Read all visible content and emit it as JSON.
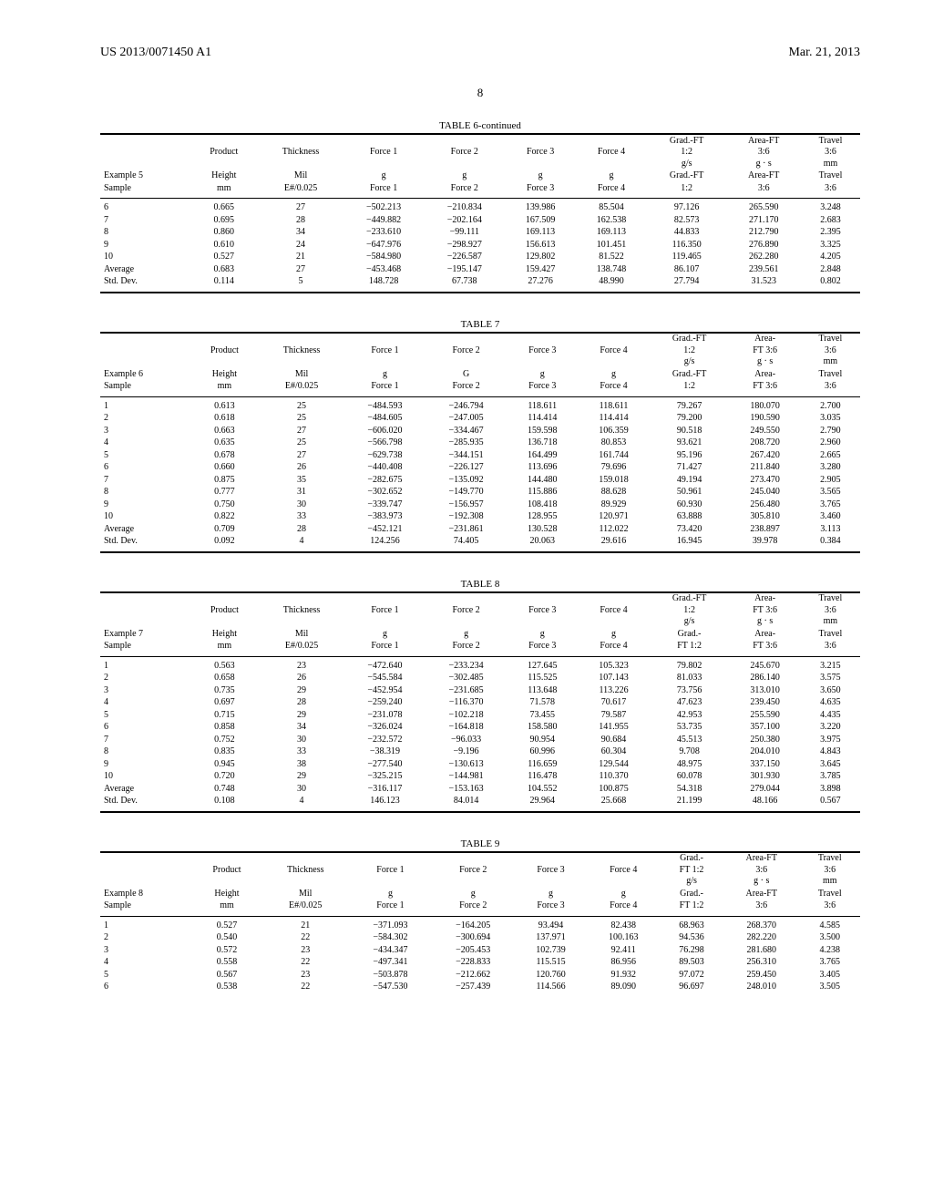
{
  "header": {
    "left": "US 2013/0071450 A1",
    "right": "Mar. 21, 2013"
  },
  "page_number": "8",
  "columns_3line": [
    [
      "",
      "Product",
      "Thickness",
      "Force 1",
      "Force 2",
      "Force 3",
      "Force 4",
      "Grad.-FT\n1:2\ng/s",
      "Area-FT\n3:6\ng · s",
      "Travel\n3:6\nmm"
    ],
    [
      "__EX__",
      "Height",
      "Mil",
      "g",
      "g",
      "g",
      "g",
      "Grad.-FT",
      "Area-FT",
      "Travel"
    ],
    [
      "Sample",
      "mm",
      "E#/0.025",
      "Force 1",
      "Force 2",
      "Force 3",
      "Force 4",
      "1:2",
      "3:6",
      "3:6"
    ]
  ],
  "columns_3line_b": [
    [
      "",
      "Product",
      "Thickness",
      "Force 1",
      "Force 2",
      "Force 3",
      "Force 4",
      "Grad.-FT\n1:2\ng/s",
      "Area-\nFT 3:6\ng · s",
      "Travel\n3:6\nmm"
    ],
    [
      "__EX__",
      "Height",
      "Mil",
      "g",
      "G",
      "g",
      "g",
      "Grad.-FT",
      "Area-",
      "Travel"
    ],
    [
      "Sample",
      "mm",
      "E#/0.025",
      "Force 1",
      "Force 2",
      "Force 3",
      "Force 4",
      "1:2",
      "FT 3:6",
      "3:6"
    ]
  ],
  "columns_3line_c": [
    [
      "",
      "Product",
      "Thickness",
      "Force 1",
      "Force 2",
      "Force 3",
      "Force 4",
      "Grad.-FT\n1:2\ng/s",
      "Area-\nFT 3:6\ng · s",
      "Travel\n3:6\nmm"
    ],
    [
      "__EX__",
      "Height",
      "Mil",
      "g",
      "g",
      "g",
      "g",
      "Grad.-",
      "Area-",
      "Travel"
    ],
    [
      "Sample",
      "mm",
      "E#/0.025",
      "Force 1",
      "Force 2",
      "Force 3",
      "Force 4",
      "FT 1:2",
      "FT 3:6",
      "3:6"
    ]
  ],
  "columns_3line_d": [
    [
      "",
      "Product",
      "Thickness",
      "Force 1",
      "Force 2",
      "Force 3",
      "Force 4",
      "Grad.-\nFT 1:2\ng/s",
      "Area-FT\n3:6\ng · s",
      "Travel\n3:6\nmm"
    ],
    [
      "__EX__",
      "Height",
      "Mil",
      "g",
      "g",
      "g",
      "g",
      "Grad.-",
      "Area-FT",
      "Travel"
    ],
    [
      "Sample",
      "mm",
      "E#/0.025",
      "Force 1",
      "Force 2",
      "Force 3",
      "Force 4",
      "FT 1:2",
      "3:6",
      "3:6"
    ]
  ],
  "tables": [
    {
      "caption": "TABLE 6-continued",
      "example": "Example 5",
      "header_style": "columns_3line",
      "rows": [
        [
          "6",
          "0.665",
          "27",
          "−502.213",
          "−210.834",
          "139.986",
          "85.504",
          "97.126",
          "265.590",
          "3.248"
        ],
        [
          "7",
          "0.695",
          "28",
          "−449.882",
          "−202.164",
          "167.509",
          "162.538",
          "82.573",
          "271.170",
          "2.683"
        ],
        [
          "8",
          "0.860",
          "34",
          "−233.610",
          "−99.111",
          "169.113",
          "169.113",
          "44.833",
          "212.790",
          "2.395"
        ],
        [
          "9",
          "0.610",
          "24",
          "−647.976",
          "−298.927",
          "156.613",
          "101.451",
          "116.350",
          "276.890",
          "3.325"
        ],
        [
          "10",
          "0.527",
          "21",
          "−584.980",
          "−226.587",
          "129.802",
          "81.522",
          "119.465",
          "262.280",
          "4.205"
        ],
        [
          "Average",
          "0.683",
          "27",
          "−453.468",
          "−195.147",
          "159.427",
          "138.748",
          "86.107",
          "239.561",
          "2.848"
        ],
        [
          "Std. Dev.",
          "0.114",
          "5",
          "148.728",
          "67.738",
          "27.276",
          "48.990",
          "27.794",
          "31.523",
          "0.802"
        ]
      ]
    },
    {
      "caption": "TABLE 7",
      "example": "Example 6",
      "header_style": "columns_3line_b",
      "rows": [
        [
          "1",
          "0.613",
          "25",
          "−484.593",
          "−246.794",
          "118.611",
          "118.611",
          "79.267",
          "180.070",
          "2.700"
        ],
        [
          "2",
          "0.618",
          "25",
          "−484.605",
          "−247.005",
          "114.414",
          "114.414",
          "79.200",
          "190.590",
          "3.035"
        ],
        [
          "3",
          "0.663",
          "27",
          "−606.020",
          "−334.467",
          "159.598",
          "106.359",
          "90.518",
          "249.550",
          "2.790"
        ],
        [
          "4",
          "0.635",
          "25",
          "−566.798",
          "−285.935",
          "136.718",
          "80.853",
          "93.621",
          "208.720",
          "2.960"
        ],
        [
          "5",
          "0.678",
          "27",
          "−629.738",
          "−344.151",
          "164.499",
          "161.744",
          "95.196",
          "267.420",
          "2.665"
        ],
        [
          "6",
          "0.660",
          "26",
          "−440.408",
          "−226.127",
          "113.696",
          "79.696",
          "71.427",
          "211.840",
          "3.280"
        ],
        [
          "7",
          "0.875",
          "35",
          "−282.675",
          "−135.092",
          "144.480",
          "159.018",
          "49.194",
          "273.470",
          "2.905"
        ],
        [
          "8",
          "0.777",
          "31",
          "−302.652",
          "−149.770",
          "115.886",
          "88.628",
          "50.961",
          "245.040",
          "3.565"
        ],
        [
          "9",
          "0.750",
          "30",
          "−339.747",
          "−156.957",
          "108.418",
          "89.929",
          "60.930",
          "256.480",
          "3.765"
        ],
        [
          "10",
          "0.822",
          "33",
          "−383.973",
          "−192.308",
          "128.955",
          "120.971",
          "63.888",
          "305.810",
          "3.460"
        ],
        [
          "Average",
          "0.709",
          "28",
          "−452.121",
          "−231.861",
          "130.528",
          "112.022",
          "73.420",
          "238.897",
          "3.113"
        ],
        [
          "Std. Dev.",
          "0.092",
          "4",
          "124.256",
          "74.405",
          "20.063",
          "29.616",
          "16.945",
          "39.978",
          "0.384"
        ]
      ]
    },
    {
      "caption": "TABLE 8",
      "example": "Example 7",
      "header_style": "columns_3line_c",
      "rows": [
        [
          "1",
          "0.563",
          "23",
          "−472.640",
          "−233.234",
          "127.645",
          "105.323",
          "79.802",
          "245.670",
          "3.215"
        ],
        [
          "2",
          "0.658",
          "26",
          "−545.584",
          "−302.485",
          "115.525",
          "107.143",
          "81.033",
          "286.140",
          "3.575"
        ],
        [
          "3",
          "0.735",
          "29",
          "−452.954",
          "−231.685",
          "113.648",
          "113.226",
          "73.756",
          "313.010",
          "3.650"
        ],
        [
          "4",
          "0.697",
          "28",
          "−259.240",
          "−116.370",
          "71.578",
          "70.617",
          "47.623",
          "239.450",
          "4.635"
        ],
        [
          "5",
          "0.715",
          "29",
          "−231.078",
          "−102.218",
          "73.455",
          "79.587",
          "42.953",
          "255.590",
          "4.435"
        ],
        [
          "6",
          "0.858",
          "34",
          "−326.024",
          "−164.818",
          "158.580",
          "141.955",
          "53.735",
          "357.100",
          "3.220"
        ],
        [
          "7",
          "0.752",
          "30",
          "−232.572",
          "−96.033",
          "90.954",
          "90.684",
          "45.513",
          "250.380",
          "3.975"
        ],
        [
          "8",
          "0.835",
          "33",
          "−38.319",
          "−9.196",
          "60.996",
          "60.304",
          "9.708",
          "204.010",
          "4.843"
        ],
        [
          "9",
          "0.945",
          "38",
          "−277.540",
          "−130.613",
          "116.659",
          "129.544",
          "48.975",
          "337.150",
          "3.645"
        ],
        [
          "10",
          "0.720",
          "29",
          "−325.215",
          "−144.981",
          "116.478",
          "110.370",
          "60.078",
          "301.930",
          "3.785"
        ],
        [
          "Average",
          "0.748",
          "30",
          "−316.117",
          "−153.163",
          "104.552",
          "100.875",
          "54.318",
          "279.044",
          "3.898"
        ],
        [
          "Std. Dev.",
          "0.108",
          "4",
          "146.123",
          "84.014",
          "29.964",
          "25.668",
          "21.199",
          "48.166",
          "0.567"
        ]
      ]
    },
    {
      "caption": "TABLE 9",
      "example": "Example 8",
      "header_style": "columns_3line_d",
      "rows": [
        [
          "1",
          "0.527",
          "21",
          "−371.093",
          "−164.205",
          "93.494",
          "82.438",
          "68.963",
          "268.370",
          "4.585"
        ],
        [
          "2",
          "0.540",
          "22",
          "−584.302",
          "−300.694",
          "137.971",
          "100.163",
          "94.536",
          "282.220",
          "3.500"
        ],
        [
          "3",
          "0.572",
          "23",
          "−434.347",
          "−205.453",
          "102.739",
          "92.411",
          "76.298",
          "281.680",
          "4.238"
        ],
        [
          "4",
          "0.558",
          "22",
          "−497.341",
          "−228.833",
          "115.515",
          "86.956",
          "89.503",
          "256.310",
          "3.765"
        ],
        [
          "5",
          "0.567",
          "23",
          "−503.878",
          "−212.662",
          "120.760",
          "91.932",
          "97.072",
          "259.450",
          "3.405"
        ],
        [
          "6",
          "0.538",
          "22",
          "−547.530",
          "−257.439",
          "114.566",
          "89.090",
          "96.697",
          "248.010",
          "3.505"
        ]
      ]
    }
  ]
}
